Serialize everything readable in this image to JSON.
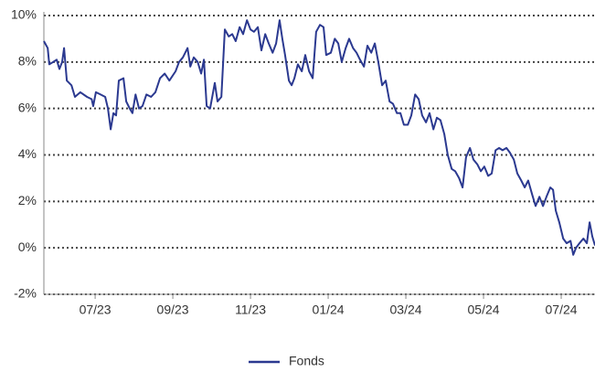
{
  "chart_data": {
    "type": "line",
    "x": [
      0.68,
      0.78,
      0.82,
      0.92,
      1.01,
      1.08,
      1.15,
      1.2,
      1.27,
      1.39,
      1.48,
      1.62,
      1.79,
      1.91,
      1.95,
      2.02,
      2.14,
      2.26,
      2.33,
      2.4,
      2.47,
      2.54,
      2.61,
      2.73,
      2.8,
      2.89,
      2.96,
      3.04,
      3.13,
      3.22,
      3.32,
      3.44,
      3.55,
      3.67,
      3.79,
      3.91,
      4.07,
      4.16,
      4.26,
      4.38,
      4.45,
      4.54,
      4.64,
      4.73,
      4.8,
      4.87,
      4.96,
      5.08,
      5.15,
      5.25,
      5.34,
      5.44,
      5.53,
      5.62,
      5.72,
      5.81,
      5.91,
      6.0,
      6.09,
      6.19,
      6.28,
      6.38,
      6.47,
      6.57,
      6.66,
      6.75,
      6.82,
      6.89,
      6.99,
      7.06,
      7.13,
      7.22,
      7.32,
      7.41,
      7.51,
      7.6,
      7.69,
      7.79,
      7.88,
      7.95,
      8.07,
      8.17,
      8.26,
      8.35,
      8.45,
      8.54,
      8.64,
      8.73,
      8.82,
      8.92,
      9.01,
      9.11,
      9.2,
      9.29,
      9.39,
      9.48,
      9.58,
      9.67,
      9.77,
      9.86,
      9.95,
      10.05,
      10.14,
      10.24,
      10.33,
      10.42,
      10.52,
      10.61,
      10.71,
      10.8,
      10.89,
      10.99,
      11.08,
      11.18,
      11.27,
      11.37,
      11.46,
      11.55,
      11.65,
      11.74,
      11.84,
      11.93,
      12.02,
      12.12,
      12.21,
      12.31,
      12.4,
      12.49,
      12.59,
      12.68,
      12.78,
      12.87,
      12.97,
      13.06,
      13.15,
      13.25,
      13.34,
      13.44,
      13.53,
      13.62,
      13.72,
      13.79,
      13.86,
      13.95,
      14.05,
      14.14,
      14.24,
      14.31,
      14.38,
      14.47,
      14.57,
      14.66,
      14.73,
      14.8,
      14.87
    ],
    "series": [
      {
        "name": "Fonds",
        "color": "#2b3990",
        "values": [
          8.9,
          8.6,
          7.9,
          8.0,
          8.1,
          7.7,
          8.0,
          8.6,
          7.2,
          7.0,
          6.5,
          6.7,
          6.5,
          6.4,
          6.1,
          6.7,
          6.6,
          6.5,
          6.0,
          5.1,
          5.8,
          5.7,
          7.2,
          7.3,
          6.3,
          6.0,
          5.8,
          6.6,
          6.0,
          6.1,
          6.6,
          6.5,
          6.7,
          7.3,
          7.5,
          7.2,
          7.6,
          8.0,
          8.2,
          8.6,
          7.8,
          8.2,
          8.0,
          7.5,
          8.1,
          6.1,
          6.0,
          7.1,
          6.3,
          6.5,
          9.4,
          9.1,
          9.2,
          8.9,
          9.5,
          9.2,
          9.8,
          9.4,
          9.3,
          9.5,
          8.5,
          9.2,
          8.8,
          8.4,
          8.8,
          9.8,
          9.0,
          8.3,
          7.2,
          7.0,
          7.3,
          7.9,
          7.6,
          8.3,
          7.6,
          7.3,
          9.3,
          9.6,
          9.5,
          8.3,
          8.4,
          9.0,
          8.8,
          8.0,
          8.6,
          9.0,
          8.6,
          8.4,
          8.1,
          7.8,
          8.7,
          8.4,
          8.8,
          8.0,
          7.0,
          7.2,
          6.3,
          6.2,
          5.8,
          5.8,
          5.3,
          5.3,
          5.7,
          6.6,
          6.4,
          5.7,
          5.4,
          5.8,
          5.1,
          5.6,
          5.5,
          4.9,
          4.0,
          3.4,
          3.3,
          3.0,
          2.6,
          3.9,
          4.3,
          3.8,
          3.6,
          3.3,
          3.5,
          3.1,
          3.2,
          4.2,
          4.3,
          4.2,
          4.3,
          4.1,
          3.8,
          3.2,
          2.9,
          2.6,
          2.9,
          2.3,
          1.8,
          2.2,
          1.8,
          2.2,
          2.6,
          2.5,
          1.6,
          1.1,
          0.4,
          0.2,
          0.3,
          -0.3,
          0.0,
          0.2,
          0.4,
          0.2,
          1.1,
          0.5,
          0.1
        ]
      }
    ],
    "xlim": [
      0.68,
      14.87
    ],
    "xticks": [
      {
        "value": 2,
        "label": "07/23"
      },
      {
        "value": 4,
        "label": "09/23"
      },
      {
        "value": 6,
        "label": "11/23"
      },
      {
        "value": 8,
        "label": "01/24"
      },
      {
        "value": 10,
        "label": "03/24"
      },
      {
        "value": 12,
        "label": "05/24"
      },
      {
        "value": 14,
        "label": "07/24"
      }
    ],
    "ylim": [
      -2,
      10
    ],
    "yticks": [
      {
        "value": -2,
        "label": "-2%"
      },
      {
        "value": 0,
        "label": "0%"
      },
      {
        "value": 2,
        "label": "2%"
      },
      {
        "value": 4,
        "label": "4%"
      },
      {
        "value": 6,
        "label": "6%"
      },
      {
        "value": 8,
        "label": "8%"
      },
      {
        "value": 10,
        "label": "10%"
      }
    ],
    "grid": true,
    "legend": "bottom"
  }
}
